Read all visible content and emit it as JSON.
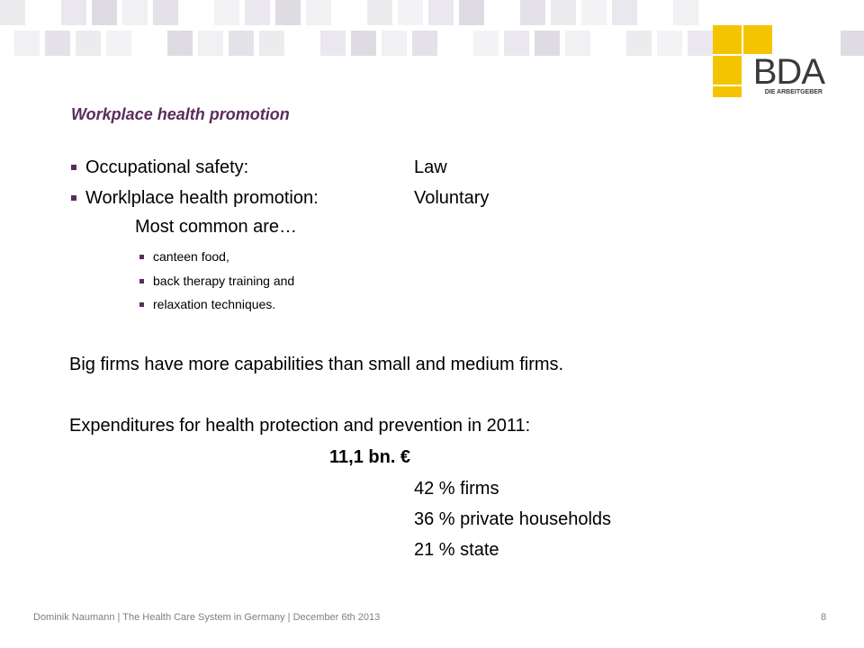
{
  "logo": {
    "brand": "BDA",
    "tagline": "DIE ARBEITGEBER"
  },
  "colors": {
    "accent": "#5a2d5c",
    "logo_yellow": "#f5c400",
    "footer_gray": "#7f7f7f"
  },
  "title": "Workplace health promotion",
  "bullets": [
    {
      "label": "Occupational safety:",
      "value": "Law"
    },
    {
      "label": "Worklplace health promotion:",
      "value": "Voluntary"
    }
  ],
  "most_common_intro": "Most common are…",
  "sub_bullets": [
    "canteen food,",
    "back therapy training and",
    "relaxation techniques."
  ],
  "capabilities_statement": "Big firms have more capabilities than small and medium firms.",
  "expenditures_intro": "Expenditures for health protection and prevention in 2011:",
  "expenditures_total": "11,1 bn. €",
  "shares": [
    "42 % firms",
    "36 % private households",
    "21 % state"
  ],
  "footer": "Dominik Naumann | The Health Care System in Germany | December 6th 2013",
  "page_number": "8"
}
